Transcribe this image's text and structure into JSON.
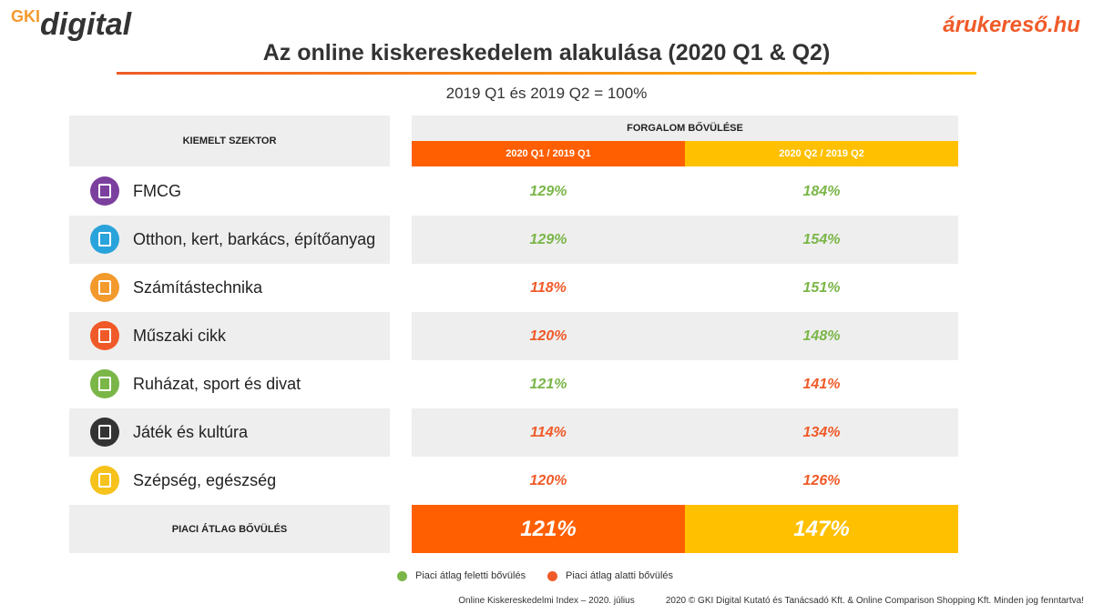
{
  "logos": {
    "left_prefix": "GKI",
    "left": "digital",
    "right": "árukereső.hu"
  },
  "header": {
    "title": "Az online kiskereskedelem alakulása (2020 Q1 & Q2)",
    "subtitle": "2019 Q1 és 2019 Q2 = 100%"
  },
  "table": {
    "sector_header": "KIEMELT SZEKTOR",
    "growth_header": "FORGALOM BŐVÜLÉSE",
    "q1_header": "2020 Q1 / 2019  Q1",
    "q2_header": "2020 Q2 / 2019  Q2",
    "q1_color": "#ff5f00",
    "q2_color": "#ffc000",
    "rows": [
      {
        "sector": "FMCG",
        "icon_color": "#7b3f9e",
        "q1": {
          "text": "129%",
          "color": "#7ab648"
        },
        "q2": {
          "text": "184%",
          "color": "#7ab648"
        }
      },
      {
        "sector": "Otthon, kert, barkács, építőanyag",
        "icon_color": "#29a3db",
        "q1": {
          "text": "129%",
          "color": "#7ab648"
        },
        "q2": {
          "text": "154%",
          "color": "#7ab648"
        }
      },
      {
        "sector": "Számítástechnika",
        "icon_color": "#f39a2d",
        "q1": {
          "text": "118%",
          "color": "#f05a28"
        },
        "q2": {
          "text": "151%",
          "color": "#7ab648"
        }
      },
      {
        "sector": "Műszaki cikk",
        "icon_color": "#f05a28",
        "q1": {
          "text": "120%",
          "color": "#f05a28"
        },
        "q2": {
          "text": "148%",
          "color": "#7ab648"
        }
      },
      {
        "sector": "Ruházat, sport és divat",
        "icon_color": "#7ab648",
        "q1": {
          "text": "121%",
          "color": "#7ab648"
        },
        "q2": {
          "text": "141%",
          "color": "#f05a28"
        }
      },
      {
        "sector": "Játék és kultúra",
        "icon_color": "#333333",
        "q1": {
          "text": "114%",
          "color": "#f05a28"
        },
        "q2": {
          "text": "134%",
          "color": "#f05a28"
        }
      },
      {
        "sector": "Szépség, egészség",
        "icon_color": "#f6c21c",
        "q1": {
          "text": "120%",
          "color": "#f05a28"
        },
        "q2": {
          "text": "126%",
          "color": "#f05a28"
        }
      }
    ],
    "average": {
      "label": "PIACI ÁTLAG BŐVÜLÉS",
      "q1": "121%",
      "q2": "147%"
    }
  },
  "legend": [
    {
      "label": "Piaci átlag feletti bővülés",
      "color": "#7ab648"
    },
    {
      "label": "Piaci átlag alatti bővülés",
      "color": "#f05a28"
    }
  ],
  "footer": {
    "source": "Online Kiskereskedelmi Index – 2020. július",
    "copyright": "2020 © GKI Digital Kutató és Tanácsadó Kft. & Online Comparison Shopping Kft. Minden jog fenntartva!"
  }
}
